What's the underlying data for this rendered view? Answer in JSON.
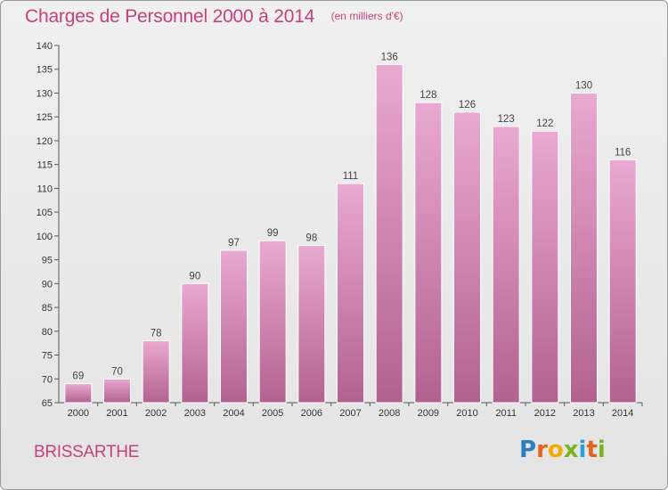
{
  "header": {
    "title": "Charges de Personnel 2000 à 2014",
    "subtitle": "(en milliers d'€)"
  },
  "footer": {
    "place": "BRISSARTHE",
    "logo": "Proxiti"
  },
  "colors": {
    "accent": "#c8407a",
    "bar_top": "#e9a7d0",
    "bar_bottom": "#b0628f"
  },
  "chart_data": {
    "type": "bar",
    "title": "Charges de Personnel 2000 à 2014",
    "subtitle": "(en milliers d'€)",
    "xlabel": "",
    "ylabel": "",
    "categories": [
      "2000",
      "2001",
      "2002",
      "2003",
      "2004",
      "2005",
      "2006",
      "2007",
      "2008",
      "2009",
      "2010",
      "2011",
      "2012",
      "2013",
      "2014"
    ],
    "values": [
      69,
      70,
      78,
      90,
      97,
      99,
      98,
      111,
      136,
      128,
      126,
      123,
      122,
      130,
      116
    ],
    "ylim": [
      65,
      140
    ],
    "yticks": [
      65,
      70,
      75,
      80,
      85,
      90,
      95,
      100,
      105,
      110,
      115,
      120,
      125,
      130,
      135,
      140
    ],
    "grid": false,
    "legend": "none"
  }
}
